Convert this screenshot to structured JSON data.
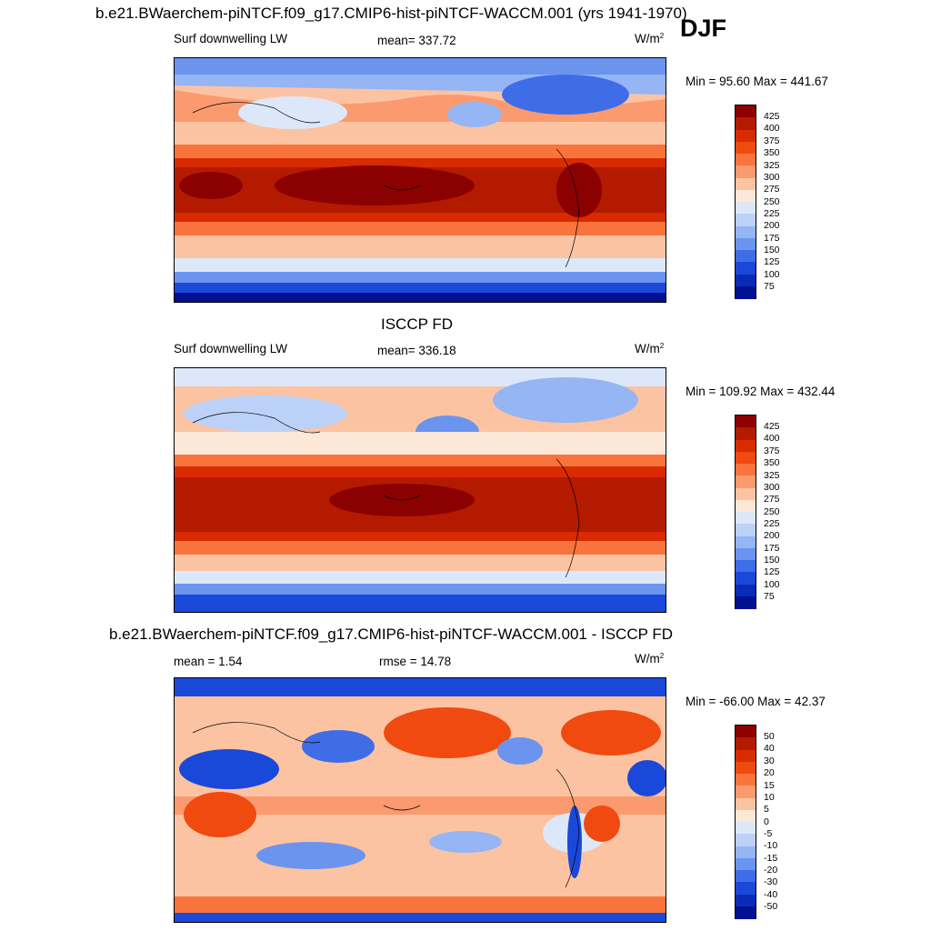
{
  "figure": {
    "season": "DJF",
    "units_main": "W/m",
    "units_sup": "2"
  },
  "panels": [
    {
      "title": "b.e21.BWaerchem-piNTCF.f09_g17.CMIP6-hist-piNTCF-WACCM.001 (yrs 1941-1970)",
      "left_label": "Surf downwelling LW",
      "center_label": "mean= 337.72",
      "minmax": "Min =  95.60 Max = 441.67"
    },
    {
      "title": "ISCCP FD",
      "left_label": "Surf downwelling LW",
      "center_label": "mean= 336.18",
      "minmax": "Min = 109.92 Max = 432.44"
    },
    {
      "title": "b.e21.BWaerchem-piNTCF.f09_g17.CMIP6-hist-piNTCF-WACCM.001 - ISCCP FD",
      "left_label": "mean =   1.54",
      "center_label": "rmse =  14.78",
      "minmax": "Min = -66.00 Max =  42.37"
    }
  ],
  "colorbar_abs": {
    "labels": [
      "425",
      "400",
      "375",
      "350",
      "325",
      "300",
      "275",
      "250",
      "225",
      "200",
      "175",
      "150",
      "125",
      "100",
      "75"
    ],
    "colors": [
      "#8b0000",
      "#b31a00",
      "#d92b00",
      "#f04a10",
      "#f8743c",
      "#fb9a6e",
      "#fcc3a2",
      "#fde8d8",
      "#dce8fa",
      "#bcd1f7",
      "#95b5f4",
      "#6b94ef",
      "#3f6de8",
      "#1a48d9",
      "#0a2ab8",
      "#001090"
    ]
  },
  "colorbar_diff": {
    "labels": [
      "50",
      "40",
      "30",
      "20",
      "15",
      "10",
      "5",
      "0",
      "-5",
      "-10",
      "-15",
      "-20",
      "-30",
      "-40",
      "-50"
    ],
    "colors": [
      "#8b0000",
      "#b31a00",
      "#d92b00",
      "#f04a10",
      "#f8743c",
      "#fb9a6e",
      "#fcc3a2",
      "#fde8d8",
      "#dce8fa",
      "#bcd1f7",
      "#95b5f4",
      "#6b94ef",
      "#3f6de8",
      "#1a48d9",
      "#0a2ab8",
      "#001090"
    ]
  },
  "chart_data": [
    {
      "type": "heatmap",
      "title": "b.e21.BWaerchem-piNTCF.f09_g17.CMIP6-hist-piNTCF-WACCM.001 (yrs 1941-1970)",
      "variable": "Surf downwelling LW",
      "units": "W/m2",
      "mean": 337.72,
      "min": 95.6,
      "max": 441.67,
      "levels": [
        75,
        100,
        125,
        150,
        175,
        200,
        225,
        250,
        275,
        300,
        325,
        350,
        375,
        400,
        425
      ]
    },
    {
      "type": "heatmap",
      "title": "ISCCP FD",
      "variable": "Surf downwelling LW",
      "units": "W/m2",
      "mean": 336.18,
      "min": 109.92,
      "max": 432.44,
      "levels": [
        75,
        100,
        125,
        150,
        175,
        200,
        225,
        250,
        275,
        300,
        325,
        350,
        375,
        400,
        425
      ]
    },
    {
      "type": "heatmap",
      "title": "b.e21.BWaerchem-piNTCF.f09_g17.CMIP6-hist-piNTCF-WACCM.001 - ISCCP FD",
      "variable": "difference",
      "units": "W/m2",
      "mean": 1.54,
      "rmse": 14.78,
      "min": -66.0,
      "max": 42.37,
      "levels": [
        -50,
        -40,
        -30,
        -20,
        -15,
        -10,
        -5,
        0,
        5,
        10,
        15,
        20,
        30,
        40,
        50
      ]
    }
  ]
}
